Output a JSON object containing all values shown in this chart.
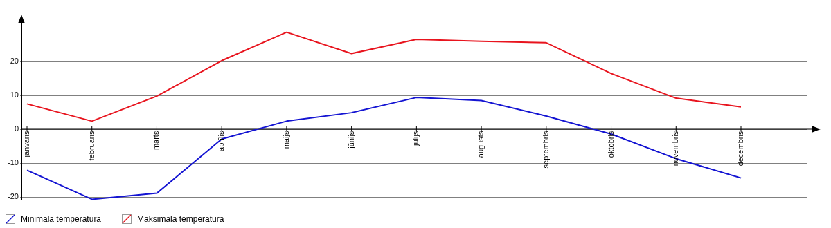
{
  "chart_data": {
    "type": "line",
    "categories": [
      "janvāris",
      "februāris",
      "marts",
      "aprīlis",
      "maijs",
      "jūnijs",
      "jūlijs",
      "augusts",
      "septembris",
      "oktobris",
      "novembris",
      "decembris"
    ],
    "series": [
      {
        "name": "Minimālā temperatūra",
        "color": "#1414d2",
        "values": [
          -12.2,
          -20.8,
          -19.0,
          -3.0,
          2.3,
          4.8,
          9.3,
          8.4,
          3.8,
          -1.5,
          -8.8,
          -14.5
        ]
      },
      {
        "name": "Maksimālā temperatūra",
        "color": "#e8141e",
        "values": [
          7.4,
          2.3,
          9.7,
          20.2,
          28.6,
          22.3,
          26.5,
          25.9,
          25.5,
          16.4,
          9.1,
          6.5
        ]
      }
    ],
    "ylim": [
      -21,
      32
    ],
    "yticks": [
      -20,
      -10,
      0,
      10,
      20
    ],
    "grid": "y",
    "legend": "bottom left",
    "marker": "none",
    "line_style": "solid"
  }
}
